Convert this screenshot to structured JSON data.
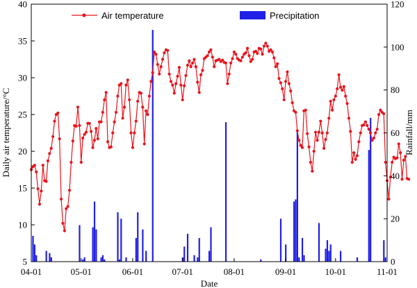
{
  "chart_data": {
    "type": "line+bar",
    "xlabel": "Date",
    "ylabel_left": "Daily air temperature/°C",
    "ylabel_right": "Rainfall/mm",
    "x_ticks": [
      "04-01",
      "05-01",
      "06-01",
      "07-01",
      "08-01",
      "09-01",
      "10-01",
      "11-01"
    ],
    "x_tick_day_index": [
      0,
      30,
      61,
      91,
      122,
      153,
      183,
      214
    ],
    "y_left_range": [
      5,
      40
    ],
    "y_left_ticks": [
      "5",
      "10",
      "15",
      "20",
      "25",
      "30",
      "35",
      "40"
    ],
    "y_right_range": [
      0,
      120
    ],
    "y_right_ticks": [
      "0",
      "20",
      "40",
      "60",
      "80",
      "100",
      "120"
    ],
    "colors": {
      "temperature": "#e8141c",
      "precipitation": "#1f1fe6",
      "axis": "#000000"
    },
    "series": [
      {
        "name": "Air temperature",
        "axis": "left",
        "style": "line-markers",
        "values": [
          17.5,
          17.9,
          18.1,
          17.2,
          14.9,
          12.8,
          14.6,
          18.1,
          16.0,
          15.9,
          18.7,
          19.7,
          20.4,
          22.0,
          24.1,
          25.0,
          25.2,
          21.7,
          13.5,
          10.2,
          9.2,
          12.2,
          12.5,
          14.7,
          18.5,
          21.4,
          23.5,
          23.4,
          26.0,
          23.5,
          18.5,
          21.8,
          22.3,
          22.6,
          23.8,
          23.8,
          22.7,
          20.5,
          21.5,
          23.1,
          21.7,
          24.0,
          24.0,
          25.3,
          27.0,
          28.0,
          21.3,
          20.5,
          20.6,
          22.5,
          24.0,
          25.3,
          27.5,
          29.0,
          29.2,
          24.5,
          26.0,
          29.0,
          29.7,
          27.0,
          22.5,
          20.5,
          22.5,
          24.1,
          26.8,
          28.0,
          27.9,
          26.0,
          21.0,
          25.5,
          25.0,
          27.5,
          29.5,
          30.7,
          33.5,
          33.2,
          31.8,
          30.5,
          31.5,
          32.5,
          33.4,
          33.8,
          33.7,
          30.5,
          29.5,
          29.0,
          27.9,
          29.2,
          30.2,
          31.4,
          29.0,
          27.0,
          28.9,
          30.3,
          31.7,
          32.3,
          31.5,
          32.0,
          32.5,
          31.5,
          29.4,
          28.0,
          30.4,
          31.0,
          32.6,
          32.8,
          33.0,
          33.5,
          33.8,
          32.8,
          31.5,
          32.3,
          32.4,
          32.5,
          32.2,
          32.4,
          32.1,
          32.0,
          29.2,
          30.5,
          32.0,
          32.6,
          33.5,
          33.2,
          32.6,
          32.4,
          32.3,
          32.8,
          33.2,
          33.4,
          34.0,
          33.0,
          32.2,
          32.5,
          33.5,
          33.6,
          33.3,
          34.0,
          33.9,
          33.2,
          34.3,
          34.7,
          34.3,
          33.6,
          33.8,
          33.5,
          32.7,
          31.5,
          31.9,
          29.9,
          29.3,
          28.5,
          27.0,
          29.5,
          30.8,
          29.2,
          28.2,
          26.6,
          25.5,
          25.3,
          22.8,
          21.5,
          20.8,
          20.5,
          25.5,
          25.6,
          22.4,
          20.6,
          18.5,
          17.3,
          20.0,
          22.6,
          21.5,
          22.6,
          24.1,
          22.5,
          20.4,
          21.6,
          22.5,
          24.5,
          26.8,
          25.6,
          27.0,
          27.5,
          28.5,
          30.4,
          28.7,
          28.3,
          28.8,
          27.5,
          26.5,
          24.5,
          22.7,
          18.5,
          19.8,
          18.9,
          19.4,
          21.3,
          22.5,
          23.5,
          23.6,
          24.0,
          23.5,
          23.0,
          22.5,
          21.5,
          21.8,
          22.5,
          23.0,
          25.0,
          25.6,
          25.3,
          25.1,
          18.5,
          16.0,
          13.5,
          16.5,
          18.5,
          19.2,
          19.0,
          19.1,
          21.0,
          19.8,
          16.2,
          18.8,
          19.3,
          16.3,
          16.2
        ]
      },
      {
        "name": "Precipitation",
        "axis": "right",
        "style": "bars",
        "days": [
          1,
          2,
          3,
          9,
          11,
          12,
          29,
          31,
          32,
          37,
          38,
          39,
          42,
          43,
          44,
          52,
          53,
          54,
          57,
          63,
          64,
          67,
          69,
          73,
          91,
          92,
          94,
          98,
          100,
          101,
          107,
          108,
          117,
          138,
          150,
          153,
          158,
          159,
          160,
          161,
          163,
          164,
          173,
          177,
          178,
          179,
          180,
          186,
          196,
          203,
          204,
          212,
          213
        ],
        "values": [
          12,
          8,
          3,
          5,
          4,
          2,
          17,
          1,
          2,
          16,
          28,
          15,
          2,
          3,
          1,
          23,
          1,
          20,
          2,
          11,
          23,
          15,
          5,
          108,
          2,
          7,
          13,
          3,
          2,
          11,
          5,
          16,
          65,
          1,
          20,
          8,
          28,
          29,
          61,
          2,
          11,
          3,
          18,
          6,
          10,
          5,
          8,
          5,
          2,
          52,
          67,
          10,
          2
        ]
      }
    ]
  }
}
